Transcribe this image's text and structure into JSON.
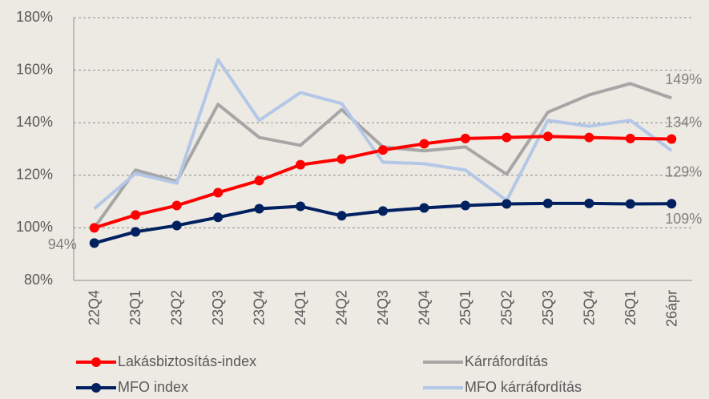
{
  "chart_data": {
    "type": "line",
    "categories": [
      "22Q4",
      "23Q1",
      "23Q2",
      "23Q3",
      "23Q4",
      "24Q1",
      "24Q2",
      "24Q3",
      "24Q4",
      "25Q1",
      "25Q2",
      "25Q3",
      "25Q4",
      "26Q1",
      "26ápr"
    ],
    "series": [
      {
        "name": "Kárráfordítás",
        "color": "#a6a6a6",
        "marker": false,
        "values": [
          100,
          122,
          117.7,
          147,
          134.4,
          131.4,
          145,
          130.8,
          129.3,
          130.8,
          120.4,
          144,
          150.6,
          154.9,
          149.4
        ],
        "value_labels": [
          null,
          null,
          null,
          null,
          null,
          null,
          null,
          null,
          null,
          null,
          null,
          null,
          null,
          null,
          "149%"
        ]
      },
      {
        "name": "MFO kárráfordítás",
        "color": "#b4c7e7",
        "marker": false,
        "values": [
          107.3,
          120.7,
          117,
          164,
          140.9,
          151.5,
          147.3,
          125,
          124.4,
          122,
          110.4,
          140.9,
          138.7,
          140.9,
          129.4
        ],
        "value_labels": [
          null,
          null,
          null,
          null,
          null,
          null,
          null,
          null,
          null,
          null,
          null,
          null,
          null,
          null,
          "129%"
        ]
      },
      {
        "name": "Lakásbiztosítás-index",
        "color": "#ff0000",
        "marker": true,
        "values": [
          100,
          104.9,
          108.5,
          113.4,
          118,
          124,
          126.2,
          129.6,
          132,
          134,
          134.4,
          134.8,
          134.4,
          134,
          133.8
        ],
        "value_labels": [
          null,
          null,
          null,
          null,
          null,
          null,
          null,
          null,
          null,
          null,
          null,
          null,
          null,
          null,
          "134%"
        ]
      },
      {
        "name": "MFO index",
        "color": "#002060",
        "marker": true,
        "values": [
          94.2,
          98.5,
          100.9,
          104,
          107.3,
          108.2,
          104.6,
          106.4,
          107.6,
          108.5,
          109.1,
          109.3,
          109.3,
          109.1,
          109.2
        ],
        "value_labels": [
          "94%",
          null,
          null,
          null,
          null,
          null,
          null,
          null,
          null,
          null,
          null,
          null,
          null,
          null,
          "109%"
        ]
      }
    ],
    "ylim": [
      80,
      180
    ],
    "yticks": [
      {
        "value": 80,
        "label": "80%"
      },
      {
        "value": 100,
        "label": "100%"
      },
      {
        "value": 120,
        "label": "120%"
      },
      {
        "value": 140,
        "label": "140%"
      },
      {
        "value": 160,
        "label": "160%"
      },
      {
        "value": 180,
        "label": "180%"
      }
    ],
    "grid": true,
    "legend": "bottom"
  }
}
